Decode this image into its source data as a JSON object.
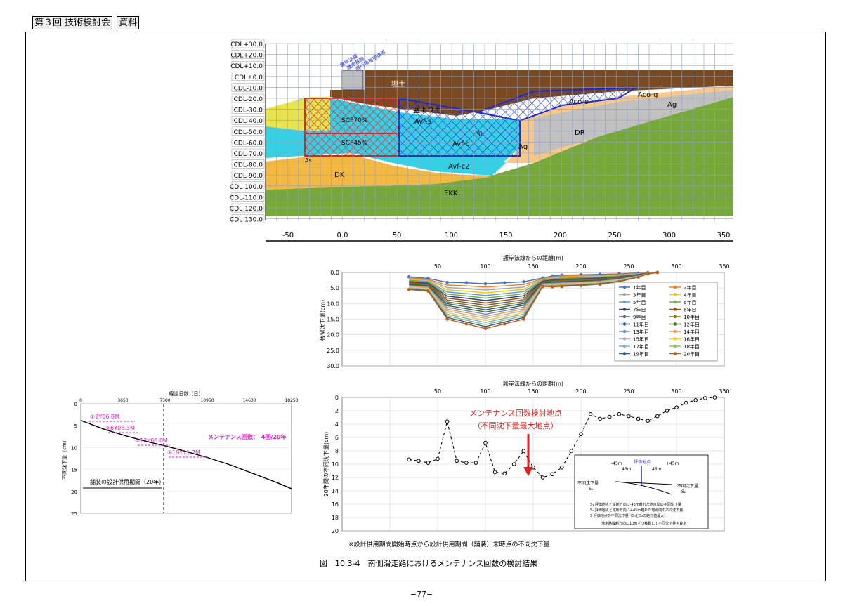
{
  "header": {
    "meeting": "第３回 技術検討会",
    "material": "資料"
  },
  "page_number": "−77−",
  "figure_caption": "図　10.3-4　南側滑走路におけるメンテナンス回数の検討結果",
  "footnote": "※設計供用期間開始時点から設計供用期間（舗装）末時点の不同沈下量",
  "section": {
    "y_labels": [
      "CDL+30.0",
      "CDL+20.0",
      "CDL+10.0",
      "CDL±0.0",
      "CDL-10.0",
      "CDL-20.0",
      "CDL-30.0",
      "CDL-40.0",
      "CDL-50.0",
      "CDL-60.0",
      "CDL-70.0",
      "CDL-80.0",
      "CDL-90.0",
      "CDL-100.0",
      "CDL-110.0",
      "CDL-120.0",
      "CDL-130.0"
    ],
    "x_labels": [
      "-50",
      "0.0",
      "50",
      "100",
      "150",
      "200",
      "250",
      "300",
      "350"
    ],
    "layers": [
      "埋土",
      "盛上り土",
      "Avf-s",
      "Avf-c",
      "Aco-g",
      "Aco-s",
      "Ag",
      "DR",
      "DK",
      "Avf-c2",
      "EKK",
      "SCP70%",
      "SCP45%",
      "Sl",
      "As"
    ],
    "labels_top": [
      "護岸法線",
      "護岸基礎",
      "飛行場用地境界"
    ],
    "colors": {
      "fill": "#7a4a22",
      "ground": "#77a83a",
      "dk": "#f2b844",
      "cyan": "#35d0e3",
      "sand": "#f6c98a",
      "scp": "#dd2222",
      "grid": "#8fa0c8"
    }
  },
  "chart_data": [
    {
      "type": "line",
      "xlabel": "護岸法線からの距離(m)",
      "ylabel": "残留沈下量(cm)",
      "xlim": [
        -50,
        350
      ],
      "ylim": [
        0,
        30
      ],
      "x_ticks": [
        "50",
        "100",
        "150",
        "200",
        "250",
        "300",
        "350"
      ],
      "y_ticks": [
        "0.0",
        "5.0",
        "10.0",
        "15.0",
        "20.0",
        "25.0",
        "30.0"
      ],
      "x": [
        20,
        40,
        60,
        80,
        100,
        120,
        140,
        160,
        170,
        180,
        200,
        220,
        240,
        260,
        270,
        280
      ],
      "series_first": {
        "name": "1年目",
        "values": [
          1.0,
          1.5,
          2.0,
          2.0,
          2.2,
          2.0,
          1.8,
          1.5,
          0.8,
          0.5,
          0.4,
          0.3,
          0.2,
          0.1,
          0,
          0
        ]
      },
      "series_last": {
        "name": "20年目",
        "values": [
          5.5,
          6.0,
          15.0,
          16.5,
          18.0,
          16.5,
          15.0,
          4.5,
          4.6,
          4.5,
          4.2,
          3.8,
          3.0,
          1.5,
          0.5,
          0
        ]
      },
      "legend": [
        "1年目",
        "2年目",
        "3年目",
        "4年目",
        "5年目",
        "6年目",
        "7年目",
        "8年目",
        "9年目",
        "10年目",
        "11年目",
        "12年目",
        "13年目",
        "14年目",
        "15年目",
        "16年目",
        "17年目",
        "18年目",
        "19年目",
        "20年目"
      ]
    },
    {
      "type": "line",
      "xlabel": "護岸法線からの距離(m)",
      "ylabel": "20年間の不同沈下量(cm)",
      "xlim": [
        -50,
        350
      ],
      "ylim": [
        0,
        20
      ],
      "x_ticks": [
        "50",
        "100",
        "150",
        "200",
        "250",
        "300",
        "350"
      ],
      "y_ticks": [
        "0",
        "2",
        "4",
        "6",
        "8",
        "10",
        "12",
        "14",
        "16",
        "18",
        "20"
      ],
      "x": [
        20,
        30,
        40,
        50,
        60,
        70,
        80,
        90,
        100,
        110,
        120,
        130,
        140,
        150,
        160,
        170,
        180,
        190,
        200,
        210,
        220,
        230,
        240,
        250,
        260,
        270,
        280,
        290,
        300,
        310,
        320,
        330,
        340
      ],
      "values": [
        9.3,
        9.5,
        9.8,
        9.2,
        3.6,
        9.5,
        9.8,
        9.8,
        6.8,
        11.2,
        11.4,
        10.0,
        8.0,
        10.5,
        12.0,
        11.5,
        10.5,
        8.0,
        5.5,
        2.5,
        3.2,
        2.9,
        2.5,
        2.8,
        3.2,
        3.5,
        2.8,
        2.0,
        1.5,
        0.8,
        0.4,
        0.1,
        0.0
      ],
      "annotation": [
        "メンテナンス回数検討地点",
        "（不同沈下量最大地点）"
      ],
      "inset": {
        "l1": "-45m",
        "l2": "評価地点",
        "l3": "+45m",
        "d1": "45m",
        "d2": "45m",
        "s1": "不同沈下量",
        "s2": "不同沈下量",
        "sub1": "S₁",
        "sub2": "S₂",
        "n1": "S₁  評価地点と縦断方向に-45m離れた地点間の不同沈下量",
        "n2": "S₂  評価地点と縦断方向に+45m離れた地点間の不同沈下量",
        "n3": "S  評価地点の不同沈下量（S₁とS₂の絶対値最大）",
        "n4": "滑走路縦断方向に10mずつ移動して不同沈下量を算定"
      }
    },
    {
      "type": "line",
      "title": "経過日数（日）",
      "ylabel": "不同沈下量（cm）",
      "x_ticks": [
        "0",
        "3650",
        "7300",
        "10950",
        "14600",
        "18250"
      ],
      "y_ticks": [
        "0",
        "5",
        "10",
        "15",
        "20",
        "25"
      ],
      "xlim": [
        0,
        18250
      ],
      "ylim": [
        0,
        25
      ],
      "x": [
        0,
        1000,
        2000,
        3000,
        4000,
        5000,
        6000,
        7300,
        9000,
        11000,
        13000,
        15000,
        17000,
        18250
      ],
      "values": [
        3.8,
        4.8,
        5.8,
        6.6,
        7.4,
        8.1,
        8.8,
        9.6,
        10.8,
        12.3,
        14.0,
        16.0,
        18.0,
        19.4
      ],
      "steps": [
        "①2Y06.8M",
        "②6Y08.3M",
        "③12Y05.0M",
        "④19Y11.7M"
      ],
      "maintenance": "メンテナンス回数：　4回/20年",
      "design_period": "舗装の設計供用期間（20年）"
    }
  ]
}
